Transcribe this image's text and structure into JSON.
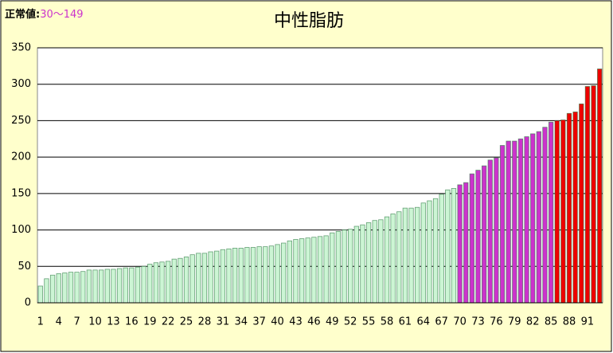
{
  "chart_data": {
    "type": "bar",
    "title": "中性脂肪",
    "annotation": {
      "label": "正常値:",
      "range": "30〜149"
    },
    "categories": [
      1,
      null,
      null,
      4,
      null,
      null,
      7,
      null,
      null,
      10,
      null,
      null,
      13,
      null,
      null,
      16,
      null,
      null,
      19,
      null,
      null,
      22,
      null,
      null,
      25,
      null,
      null,
      28,
      null,
      null,
      31,
      null,
      null,
      34,
      null,
      null,
      37,
      null,
      null,
      40,
      null,
      null,
      43,
      null,
      null,
      46,
      null,
      null,
      49,
      null,
      null,
      52,
      null,
      null,
      55,
      null,
      null,
      58,
      null,
      null,
      61,
      null,
      null,
      64,
      null,
      null,
      67,
      null,
      null,
      70,
      null,
      null,
      73,
      null,
      null,
      76,
      null,
      null,
      79,
      null,
      null,
      82,
      null,
      null,
      85,
      null,
      null,
      88,
      null,
      null,
      91,
      null,
      null
    ],
    "values": [
      23,
      33,
      38,
      40,
      41,
      42,
      42,
      43,
      45,
      45,
      45,
      46,
      46,
      47,
      48,
      48,
      49,
      50,
      53,
      55,
      56,
      57,
      60,
      61,
      63,
      66,
      68,
      68,
      70,
      71,
      73,
      74,
      75,
      75,
      76,
      76,
      77,
      77,
      78,
      80,
      82,
      85,
      87,
      88,
      89,
      90,
      91,
      92,
      96,
      98,
      100,
      101,
      105,
      107,
      110,
      113,
      114,
      118,
      122,
      125,
      130,
      130,
      131,
      137,
      140,
      143,
      149,
      155,
      157,
      162,
      165,
      177,
      182,
      188,
      196,
      199,
      216,
      222,
      222,
      225,
      228,
      232,
      235,
      241,
      248,
      250,
      251,
      260,
      262,
      273,
      297,
      298,
      321
    ],
    "colors": [
      "#ccf5d4",
      "#ccf5d4",
      "#ccf5d4",
      "#ccf5d4",
      "#ccf5d4",
      "#ccf5d4",
      "#ccf5d4",
      "#ccf5d4",
      "#ccf5d4",
      "#ccf5d4",
      "#ccf5d4",
      "#ccf5d4",
      "#ccf5d4",
      "#ccf5d4",
      "#ccf5d4",
      "#ccf5d4",
      "#ccf5d4",
      "#ccf5d4",
      "#ccf5d4",
      "#ccf5d4",
      "#ccf5d4",
      "#ccf5d4",
      "#ccf5d4",
      "#ccf5d4",
      "#ccf5d4",
      "#ccf5d4",
      "#ccf5d4",
      "#ccf5d4",
      "#ccf5d4",
      "#ccf5d4",
      "#ccf5d4",
      "#ccf5d4",
      "#ccf5d4",
      "#ccf5d4",
      "#ccf5d4",
      "#ccf5d4",
      "#ccf5d4",
      "#ccf5d4",
      "#ccf5d4",
      "#ccf5d4",
      "#ccf5d4",
      "#ccf5d4",
      "#ccf5d4",
      "#ccf5d4",
      "#ccf5d4",
      "#ccf5d4",
      "#ccf5d4",
      "#ccf5d4",
      "#ccf5d4",
      "#ccf5d4",
      "#ccf5d4",
      "#ccf5d4",
      "#ccf5d4",
      "#ccf5d4",
      "#ccf5d4",
      "#ccf5d4",
      "#ccf5d4",
      "#ccf5d4",
      "#ccf5d4",
      "#ccf5d4",
      "#ccf5d4",
      "#ccf5d4",
      "#ccf5d4",
      "#ccf5d4",
      "#ccf5d4",
      "#ccf5d4",
      "#ccf5d4",
      "#ccf5d4",
      "#ccf5d4",
      "#cc33cc",
      "#cc33cc",
      "#cc33cc",
      "#cc33cc",
      "#cc33cc",
      "#cc33cc",
      "#cc33cc",
      "#cc33cc",
      "#cc33cc",
      "#cc33cc",
      "#cc33cc",
      "#cc33cc",
      "#cc33cc",
      "#cc33cc",
      "#cc33cc",
      "#cc33cc",
      "#ee0000",
      "#ee0000",
      "#ee0000",
      "#ee0000",
      "#ee0000",
      "#ee0000",
      "#ee0000",
      "#ee0000"
    ],
    "annotation_color": "#cc33cc",
    "ylim": [
      0,
      350
    ],
    "yticks": [
      0,
      50,
      100,
      150,
      200,
      250,
      300,
      350
    ],
    "grid": true
  }
}
